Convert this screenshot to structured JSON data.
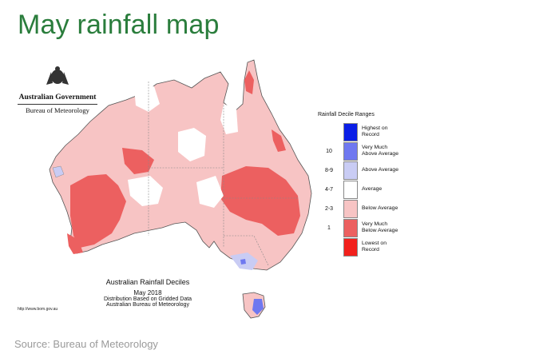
{
  "title": "May rainfall map",
  "source": "Source: Bureau of Meteorology",
  "logo": {
    "government": "Australian Government",
    "agency": "Bureau of Meteorology"
  },
  "legend": {
    "title": "Rainfall Decile Ranges",
    "items": [
      {
        "decile": "",
        "label_line1": "Highest on",
        "label_line2": "Record",
        "color": "#0a1ee6"
      },
      {
        "decile": "10",
        "label_line1": "Very Much",
        "label_line2": "Above Average",
        "color": "#6f78f0"
      },
      {
        "decile": "8-9",
        "label_line1": "Above Average",
        "label_line2": "",
        "color": "#c9ccf4"
      },
      {
        "decile": "4-7",
        "label_line1": "Average",
        "label_line2": "",
        "color": "#ffffff"
      },
      {
        "decile": "2-3",
        "label_line1": "Below Average",
        "label_line2": "",
        "color": "#f7c4c4"
      },
      {
        "decile": "1",
        "label_line1": "Very Much",
        "label_line2": "Below Average",
        "color": "#ec6060"
      },
      {
        "decile": "",
        "label_line1": "Lowest on",
        "label_line2": "Record",
        "color": "#f2201c"
      }
    ]
  },
  "map_caption": {
    "line1": "Australian Rainfall Deciles",
    "line2": "May 2018",
    "line3": "Distribution Based on Gridded Data",
    "line4": "Australian Bureau of Meteorology"
  },
  "url": "http://www.bom.gov.au",
  "colors": {
    "title_green": "#2a7d3c",
    "below_average": "#f7c4c4",
    "very_much_below": "#ec6060",
    "above_average": "#c9ccf4",
    "very_much_above": "#6f78f0"
  }
}
